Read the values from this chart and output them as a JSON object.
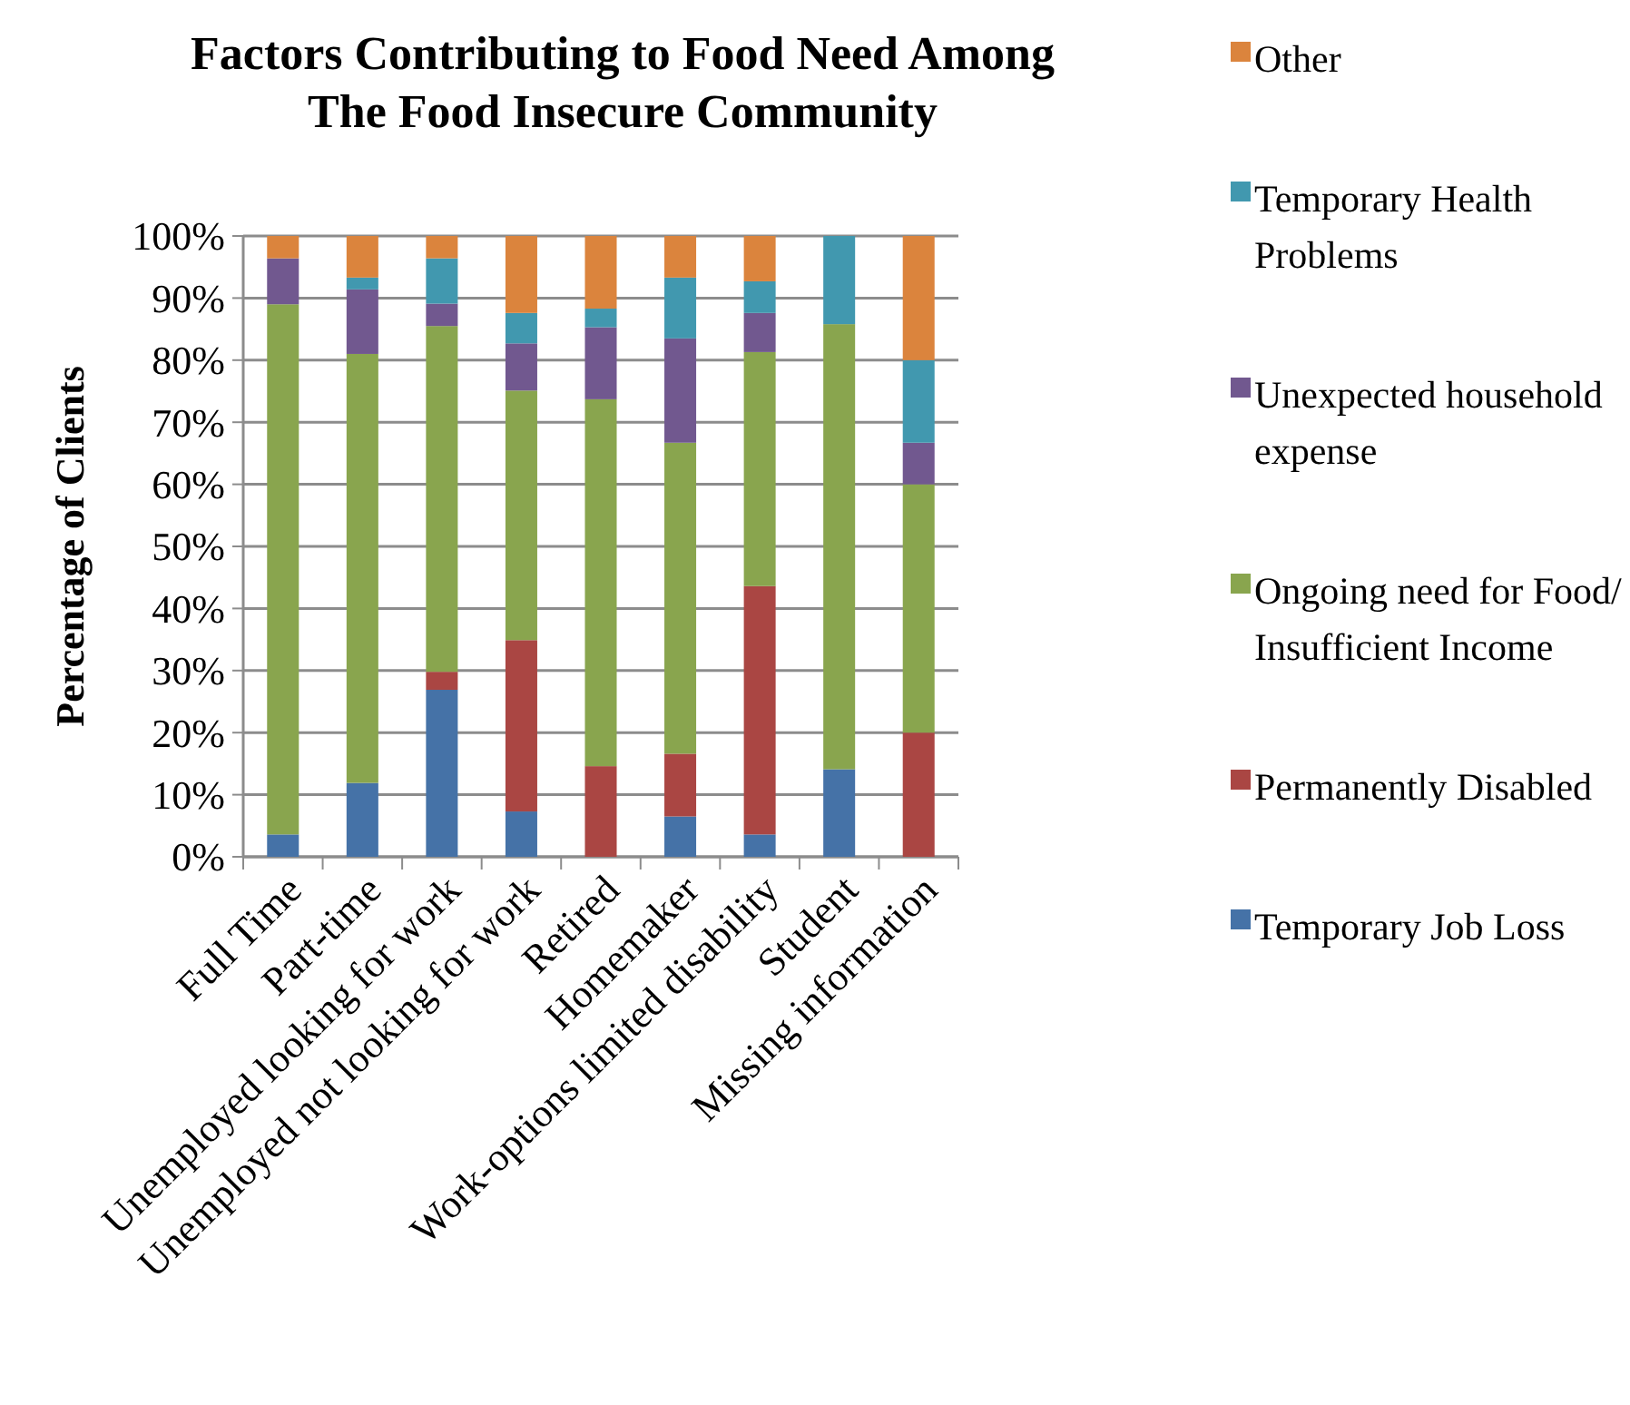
{
  "chart_data": {
    "type": "bar",
    "stacked": true,
    "title": "Factors Contributing to Food Need Among The Food Insecure Community",
    "ylabel": "Percentage of Clients",
    "categories": [
      "Full Time",
      "Part-time",
      "Unemployed looking for work",
      "Unemployed  not looking for work",
      "Retired",
      "Homemaker",
      "Work-options limited disability",
      "Student",
      "Missing information"
    ],
    "series": [
      {
        "name": "Temporary Job Loss",
        "color": "#4572a7",
        "values": [
          3.6,
          11.9,
          26.9,
          7.3,
          0,
          6.5,
          3.6,
          14.1,
          0
        ]
      },
      {
        "name": "Permanently Disabled",
        "color": "#aa4643",
        "values": [
          0,
          0,
          2.9,
          27.6,
          14.6,
          10.1,
          40,
          0,
          20
        ]
      },
      {
        "name": "Ongoing need for Food/ Insufficient Income",
        "color": "#89a54e",
        "values": [
          85.4,
          69.1,
          55.7,
          40.2,
          59.1,
          50.1,
          37.7,
          71.7,
          40
        ]
      },
      {
        "name": "Unexpected household expense",
        "color": "#71588f",
        "values": [
          7.4,
          10.4,
          3.6,
          7.6,
          11.6,
          16.8,
          6.3,
          0,
          6.7
        ]
      },
      {
        "name": "Temporary Health Problems",
        "color": "#4198af",
        "values": [
          0,
          1.9,
          7.3,
          4.9,
          3,
          9.8,
          5.1,
          14.2,
          13.3
        ]
      },
      {
        "name": "Other",
        "color": "#db843d",
        "values": [
          3.6,
          6.7,
          3.6,
          12.4,
          11.7,
          6.7,
          7.3,
          0,
          20
        ]
      }
    ],
    "ylim": [
      0,
      100
    ],
    "yticks": [
      {
        "value": 0,
        "label": "0%"
      },
      {
        "value": 10,
        "label": "10%"
      },
      {
        "value": 20,
        "label": "20%"
      },
      {
        "value": 30,
        "label": "30%"
      },
      {
        "value": 40,
        "label": "40%"
      },
      {
        "value": 50,
        "label": "50%"
      },
      {
        "value": 60,
        "label": "60%"
      },
      {
        "value": 70,
        "label": "70%"
      },
      {
        "value": 80,
        "label": "80%"
      },
      {
        "value": 90,
        "label": "90%"
      },
      {
        "value": 100,
        "label": "100%"
      }
    ],
    "grid": true,
    "legend": "right"
  }
}
